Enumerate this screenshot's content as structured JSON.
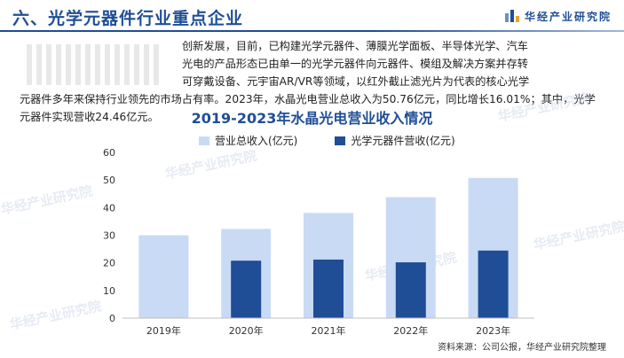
{
  "header": {
    "section_title": "六、光学元器件行业重点企业",
    "brand_name": "华经产业研究院"
  },
  "paragraph": {
    "line1": "创新发展，目前，已构建光学元器件、薄膜光学面板、半导体光学、汽车",
    "line2": "光电的产品形态已由单一的光学元器件向元器件、模组及解决方案并存转",
    "line3": "可穿戴设备、元宇宙AR/VR等领域，以红外截止滤光片为代表的核心光学",
    "line4": "元器件多年来保持行业领先的市场占有率。2023年，水晶光电营业总收入为50.76亿元，同比增长16.01%；其中，光学",
    "line5": "元器件实现营收24.46亿元。"
  },
  "watermark_text": "华经产业研究院",
  "source_text": "资料来源：公司公报，华经产业研究院整理",
  "colors": {
    "brand_blue": "#1f4e96",
    "series_total": "#c9daf4",
    "series_optical": "#1f4e96"
  },
  "chart_data": {
    "type": "bar",
    "title": "2019-2023年水晶光电营业收入情况",
    "categories": [
      "2019年",
      "2020年",
      "2021年",
      "2022年",
      "2023年"
    ],
    "series": [
      {
        "name": "营业总收入(亿元)",
        "values": [
          30.0,
          32.3,
          38.1,
          43.8,
          50.76
        ]
      },
      {
        "name": "光学元器件营收(亿元)",
        "values": [
          null,
          20.8,
          21.2,
          20.2,
          24.46
        ]
      }
    ],
    "ylim": [
      0,
      60
    ],
    "yticks": [
      0,
      10,
      20,
      30,
      40,
      50,
      60
    ],
    "grid": false,
    "legend": "top-center",
    "xlabel": "",
    "ylabel": ""
  }
}
